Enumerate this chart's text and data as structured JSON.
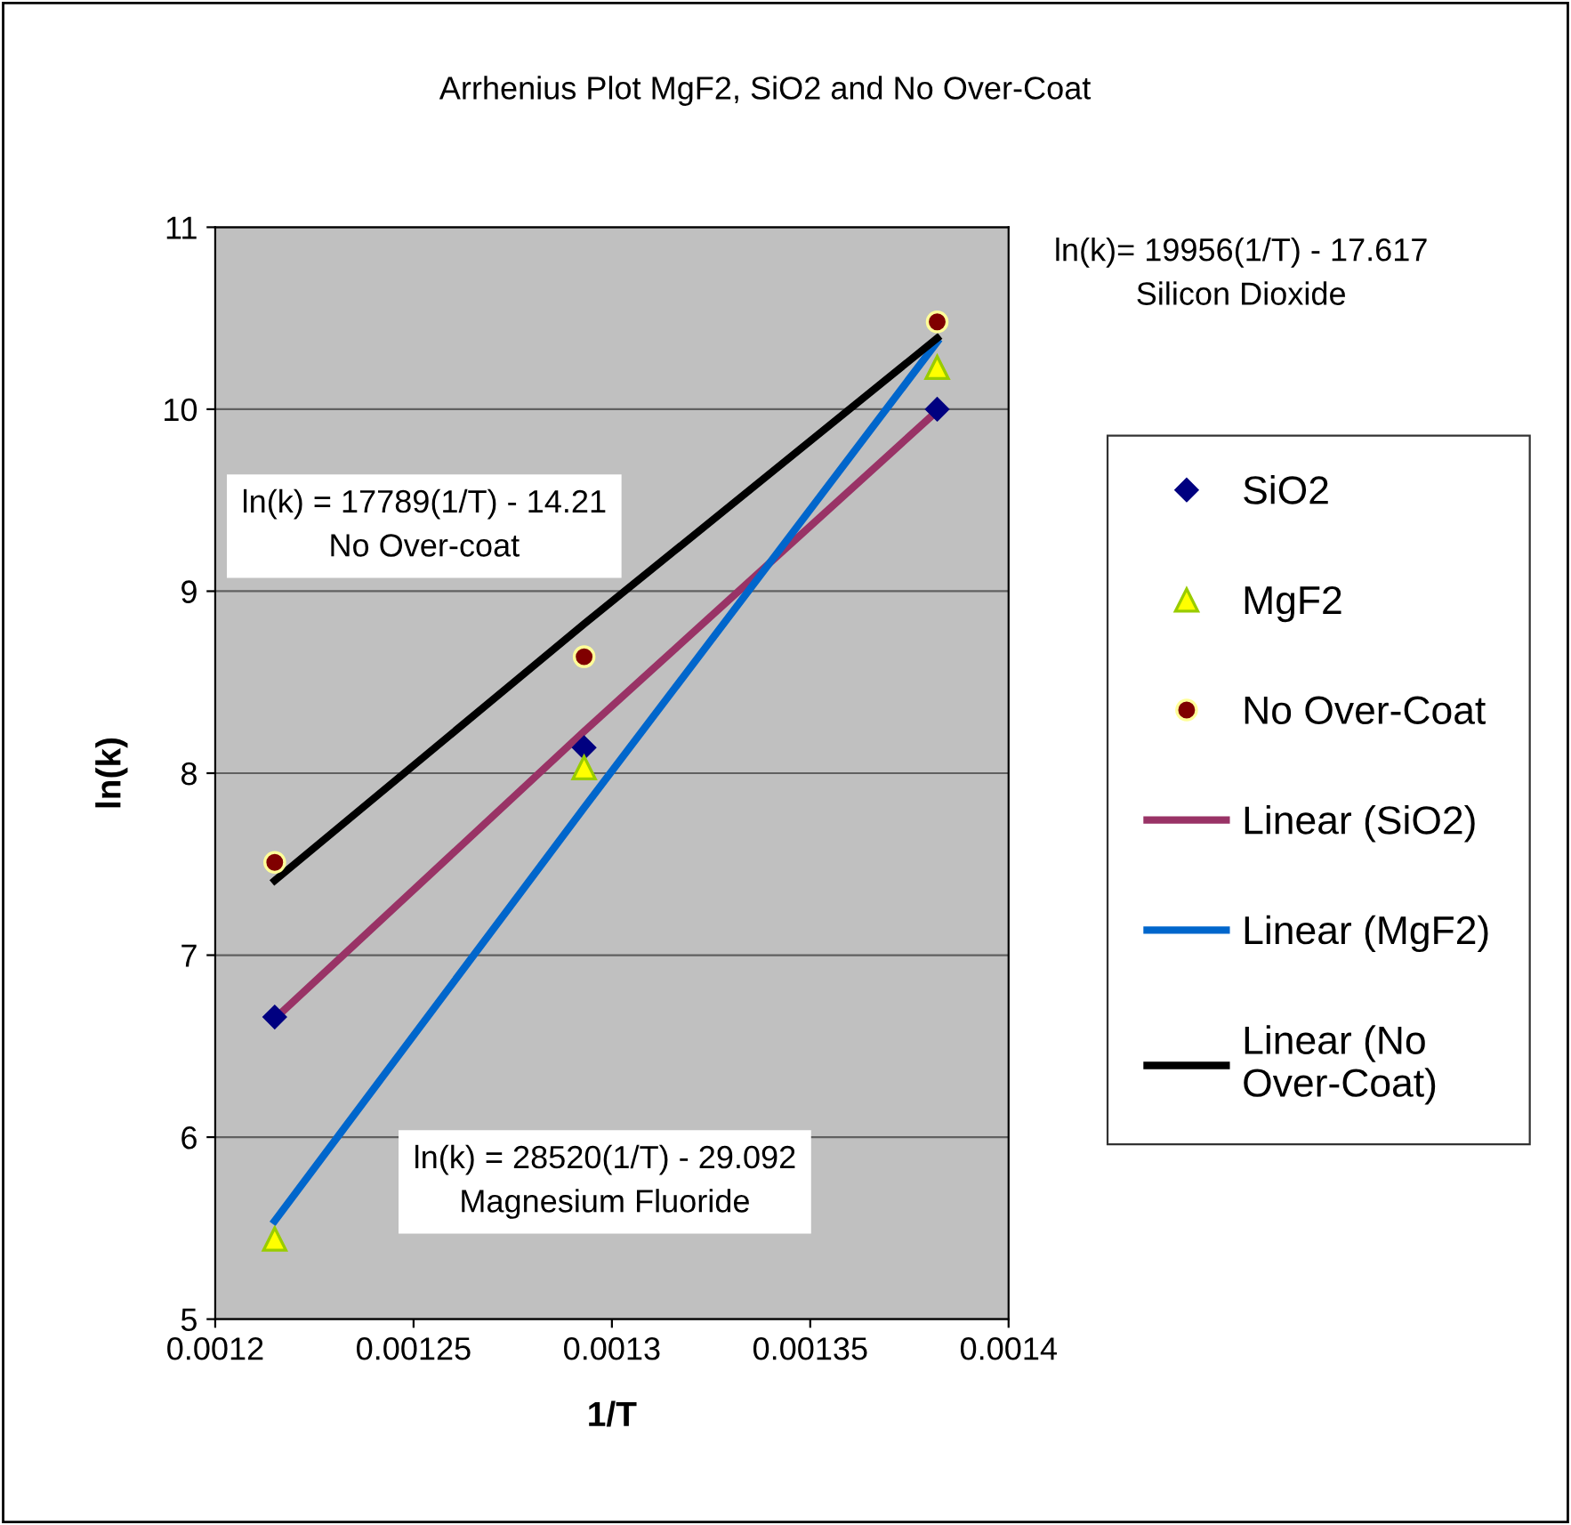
{
  "chart_data": {
    "type": "scatter",
    "title": "Arrhenius Plot MgF2, SiO2 and No Over-Coat",
    "xlabel": "1/T",
    "ylabel": "ln(k)",
    "x": [
      0.001215,
      0.001293,
      0.001382
    ],
    "series": [
      {
        "name": "SiO2",
        "color": "#000080",
        "marker": "diamond",
        "values": [
          6.66,
          8.14,
          10.0
        ]
      },
      {
        "name": "MgF2",
        "color": "#ffff00",
        "marker": "triangle",
        "values": [
          5.44,
          8.03,
          10.23
        ]
      },
      {
        "name": "No Over-Coat",
        "color": "#800000",
        "marker": "circle",
        "values": [
          7.51,
          8.64,
          10.48
        ]
      },
      {
        "name": "Linear (SiO2)",
        "type": "line",
        "color": "#993366",
        "values": [
          6.65,
          8.23,
          9.99
        ]
      },
      {
        "name": "Linear (MgF2)",
        "type": "line",
        "color": "#0066cc",
        "values": [
          5.54,
          7.81,
          10.37
        ]
      },
      {
        "name": "Linear (No Over-Coat)",
        "type": "line",
        "color": "#000000",
        "values": [
          7.41,
          8.82,
          10.39
        ]
      }
    ],
    "annotations": [
      "ln(k)= 19956(1/T) - 17.617\nSilicon Dioxide",
      "ln(k) = 17789(1/T) - 14.21\nNo Over-coat",
      "ln(k) = 28520(1/T) - 29.092\nMagnesium Fluoride"
    ],
    "xlim": [
      0.0012,
      0.0014
    ],
    "xticks": [
      0.0012,
      0.00125,
      0.0013,
      0.00135,
      0.0014
    ],
    "ylim": [
      5,
      11
    ],
    "yticks": [
      5,
      6,
      7,
      8,
      9,
      10,
      11
    ],
    "grid": "y",
    "legend": "right"
  }
}
